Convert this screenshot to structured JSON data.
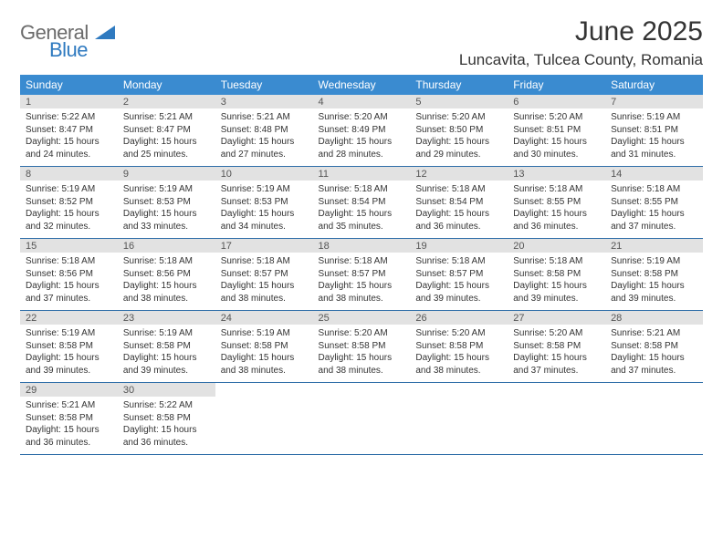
{
  "brand": {
    "word1": "General",
    "word2": "Blue",
    "word1_color": "#6b6b6b",
    "word2_color": "#2f7ac0"
  },
  "title": {
    "month": "June 2025",
    "location": "Luncavita, Tulcea County, Romania"
  },
  "style": {
    "header_bg": "#3a8bd0",
    "header_text": "#ffffff",
    "daynum_bg": "#e2e2e2",
    "row_border": "#2f6ea8",
    "body_text": "#333333",
    "title_color": "#343434",
    "font_family": "Arial",
    "daynum_fontsize": 11,
    "body_fontsize": 10,
    "header_fontsize": 12
  },
  "dayNames": [
    "Sunday",
    "Monday",
    "Tuesday",
    "Wednesday",
    "Thursday",
    "Friday",
    "Saturday"
  ],
  "days": [
    {
      "n": 1,
      "sr": "5:22 AM",
      "ss": "8:47 PM",
      "dh": 15,
      "dm": 24
    },
    {
      "n": 2,
      "sr": "5:21 AM",
      "ss": "8:47 PM",
      "dh": 15,
      "dm": 25
    },
    {
      "n": 3,
      "sr": "5:21 AM",
      "ss": "8:48 PM",
      "dh": 15,
      "dm": 27
    },
    {
      "n": 4,
      "sr": "5:20 AM",
      "ss": "8:49 PM",
      "dh": 15,
      "dm": 28
    },
    {
      "n": 5,
      "sr": "5:20 AM",
      "ss": "8:50 PM",
      "dh": 15,
      "dm": 29
    },
    {
      "n": 6,
      "sr": "5:20 AM",
      "ss": "8:51 PM",
      "dh": 15,
      "dm": 30
    },
    {
      "n": 7,
      "sr": "5:19 AM",
      "ss": "8:51 PM",
      "dh": 15,
      "dm": 31
    },
    {
      "n": 8,
      "sr": "5:19 AM",
      "ss": "8:52 PM",
      "dh": 15,
      "dm": 32
    },
    {
      "n": 9,
      "sr": "5:19 AM",
      "ss": "8:53 PM",
      "dh": 15,
      "dm": 33
    },
    {
      "n": 10,
      "sr": "5:19 AM",
      "ss": "8:53 PM",
      "dh": 15,
      "dm": 34
    },
    {
      "n": 11,
      "sr": "5:18 AM",
      "ss": "8:54 PM",
      "dh": 15,
      "dm": 35
    },
    {
      "n": 12,
      "sr": "5:18 AM",
      "ss": "8:54 PM",
      "dh": 15,
      "dm": 36
    },
    {
      "n": 13,
      "sr": "5:18 AM",
      "ss": "8:55 PM",
      "dh": 15,
      "dm": 36
    },
    {
      "n": 14,
      "sr": "5:18 AM",
      "ss": "8:55 PM",
      "dh": 15,
      "dm": 37
    },
    {
      "n": 15,
      "sr": "5:18 AM",
      "ss": "8:56 PM",
      "dh": 15,
      "dm": 37
    },
    {
      "n": 16,
      "sr": "5:18 AM",
      "ss": "8:56 PM",
      "dh": 15,
      "dm": 38
    },
    {
      "n": 17,
      "sr": "5:18 AM",
      "ss": "8:57 PM",
      "dh": 15,
      "dm": 38
    },
    {
      "n": 18,
      "sr": "5:18 AM",
      "ss": "8:57 PM",
      "dh": 15,
      "dm": 38
    },
    {
      "n": 19,
      "sr": "5:18 AM",
      "ss": "8:57 PM",
      "dh": 15,
      "dm": 39
    },
    {
      "n": 20,
      "sr": "5:18 AM",
      "ss": "8:58 PM",
      "dh": 15,
      "dm": 39
    },
    {
      "n": 21,
      "sr": "5:19 AM",
      "ss": "8:58 PM",
      "dh": 15,
      "dm": 39
    },
    {
      "n": 22,
      "sr": "5:19 AM",
      "ss": "8:58 PM",
      "dh": 15,
      "dm": 39
    },
    {
      "n": 23,
      "sr": "5:19 AM",
      "ss": "8:58 PM",
      "dh": 15,
      "dm": 39
    },
    {
      "n": 24,
      "sr": "5:19 AM",
      "ss": "8:58 PM",
      "dh": 15,
      "dm": 38
    },
    {
      "n": 25,
      "sr": "5:20 AM",
      "ss": "8:58 PM",
      "dh": 15,
      "dm": 38
    },
    {
      "n": 26,
      "sr": "5:20 AM",
      "ss": "8:58 PM",
      "dh": 15,
      "dm": 38
    },
    {
      "n": 27,
      "sr": "5:20 AM",
      "ss": "8:58 PM",
      "dh": 15,
      "dm": 37
    },
    {
      "n": 28,
      "sr": "5:21 AM",
      "ss": "8:58 PM",
      "dh": 15,
      "dm": 37
    },
    {
      "n": 29,
      "sr": "5:21 AM",
      "ss": "8:58 PM",
      "dh": 15,
      "dm": 36
    },
    {
      "n": 30,
      "sr": "5:22 AM",
      "ss": "8:58 PM",
      "dh": 15,
      "dm": 36
    }
  ],
  "labels": {
    "sunrise": "Sunrise:",
    "sunset": "Sunset:",
    "daylight_prefix": "Daylight:",
    "hours_word": "hours",
    "and_word": "and",
    "minutes_word": "minutes."
  },
  "grid": {
    "cols": 7,
    "rows": 5,
    "first_col_of_day1": 0
  }
}
